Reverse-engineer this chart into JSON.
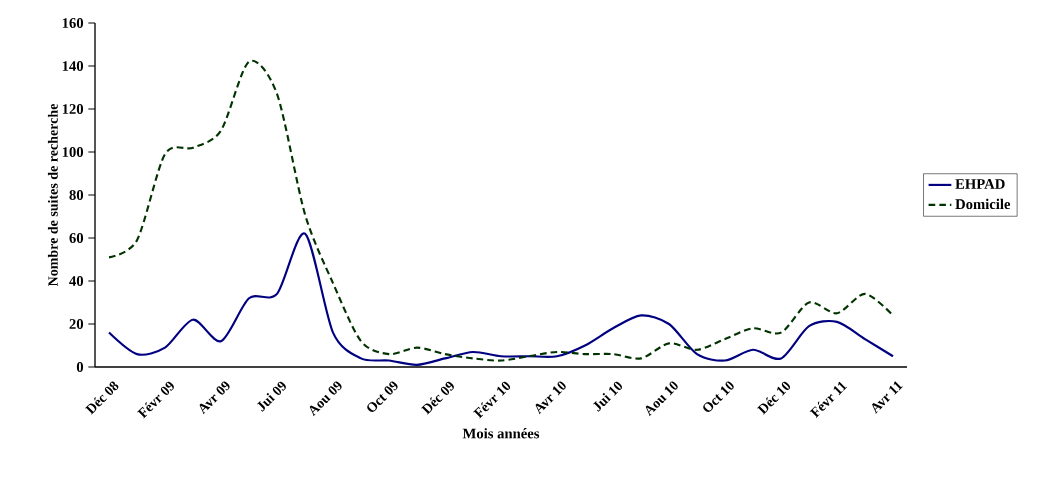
{
  "chart_data": {
    "type": "line",
    "xlabel": "Mois années",
    "ylabel": "Nombre de suites de recherche",
    "categories": [
      "Déc 08",
      null,
      "Févr 09",
      null,
      "Avr 09",
      null,
      "Jui 09",
      null,
      "Aou 09",
      null,
      "Oct 09",
      null,
      "Déc 09",
      null,
      "Févr 10",
      null,
      "Avr 10",
      null,
      "Jui 10",
      null,
      "Aou 10",
      null,
      "Oct 10",
      null,
      "Déc 10",
      null,
      "Févr 11",
      null,
      "Avr 11"
    ],
    "series": [
      {
        "name": "EHPAD",
        "color": "#000080",
        "line_style": "solid",
        "values": [
          16,
          6,
          9,
          22,
          12,
          32,
          34,
          62,
          16,
          4,
          3,
          1,
          4,
          7,
          5,
          5,
          5,
          10,
          18,
          24,
          20,
          6,
          3,
          8,
          4,
          19,
          21,
          13,
          5
        ]
      },
      {
        "name": "Domicile",
        "color": "#003300",
        "line_style": "dashed",
        "values": [
          51,
          59,
          99,
          102,
          110,
          142,
          127,
          71,
          39,
          12,
          6,
          9,
          6,
          4,
          3,
          5,
          7,
          6,
          6,
          4,
          11,
          8,
          13,
          18,
          16,
          30,
          25,
          34,
          24
        ]
      }
    ],
    "ylim": [
      0,
      160
    ],
    "yticks": [
      0,
      20,
      40,
      60,
      80,
      100,
      120,
      140,
      160
    ],
    "legend": "right"
  }
}
